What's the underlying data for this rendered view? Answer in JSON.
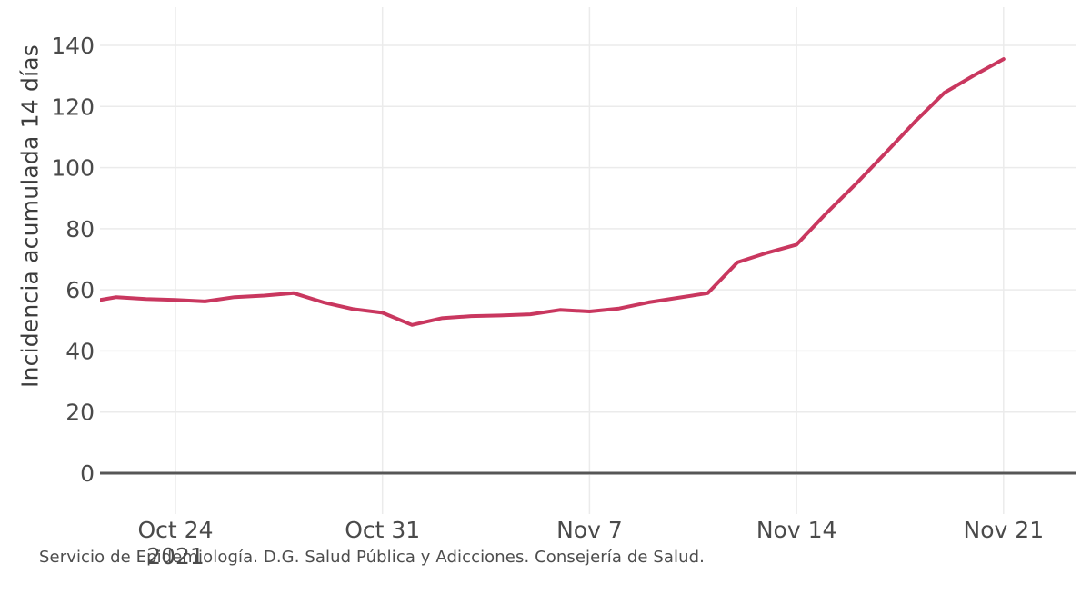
{
  "chart": {
    "y_axis_title": "Incidencia acumulada 14 días",
    "caption": "Servicio de Epidemiología. D.G. Salud Pública y Adicciones. Consejería de Salud."
  },
  "chart_data": {
    "type": "line",
    "title": "",
    "xlabel": "",
    "ylabel": "Incidencia acumulada 14 días",
    "ylim": [
      0,
      150
    ],
    "grid": true,
    "legend": "none",
    "line_color": "#c9375f",
    "axis_color": "#565656",
    "grid_color": "#ebebeb",
    "tick_label_color": "#4a4a4a",
    "y_ticks": [
      0,
      20,
      40,
      60,
      80,
      100,
      120,
      140
    ],
    "x_ticks": [
      {
        "date": "2021-10-24",
        "label": "Oct 24",
        "sublabel": "2021"
      },
      {
        "date": "2021-10-31",
        "label": "Oct 31",
        "sublabel": ""
      },
      {
        "date": "2021-11-07",
        "label": "Nov 7",
        "sublabel": ""
      },
      {
        "date": "2021-11-14",
        "label": "Nov 14",
        "sublabel": ""
      },
      {
        "date": "2021-11-21",
        "label": "Nov 21",
        "sublabel": ""
      }
    ],
    "series": [
      {
        "name": "Incidencia acumulada 14 días",
        "dates": [
          "2021-10-21",
          "2021-10-22",
          "2021-10-23",
          "2021-10-24",
          "2021-10-25",
          "2021-10-26",
          "2021-10-27",
          "2021-10-28",
          "2021-10-29",
          "2021-10-30",
          "2021-10-31",
          "2021-11-01",
          "2021-11-02",
          "2021-11-03",
          "2021-11-04",
          "2021-11-05",
          "2021-11-06",
          "2021-11-07",
          "2021-11-08",
          "2021-11-09",
          "2021-11-10",
          "2021-11-11",
          "2021-11-12",
          "2021-11-13",
          "2021-11-14",
          "2021-11-15",
          "2021-11-16",
          "2021-11-17",
          "2021-11-18",
          "2021-11-19",
          "2021-11-20",
          "2021-11-21"
        ],
        "values": [
          55.9,
          57.6,
          57.0,
          56.7,
          56.2,
          57.6,
          58.1,
          58.9,
          55.9,
          53.7,
          52.5,
          48.5,
          50.7,
          51.4,
          51.6,
          52.0,
          53.4,
          52.9,
          53.9,
          55.9,
          57.4,
          58.9,
          69.0,
          72.1,
          74.8,
          85.0,
          94.6,
          104.7,
          115.0,
          124.5,
          130.2,
          135.5
        ]
      }
    ]
  }
}
